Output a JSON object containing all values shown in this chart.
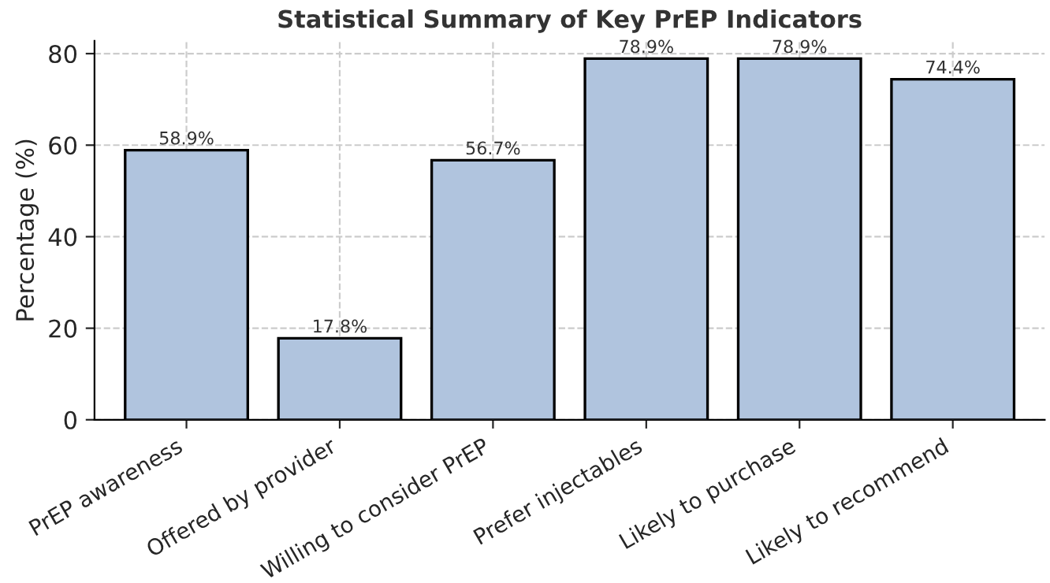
{
  "chart_data": {
    "type": "bar",
    "title": "Statistical Summary of Key PrEP Indicators",
    "ylabel": "Percentage (%)",
    "categories": [
      "PrEP awareness",
      "Offered by provider",
      "Willing to consider PrEP",
      "Prefer injectables",
      "Likely to purchase",
      "Likely to recommend"
    ],
    "values": [
      58.9,
      17.8,
      56.7,
      78.9,
      78.9,
      74.4
    ],
    "value_labels": [
      "58.9%",
      "17.8%",
      "56.7%",
      "78.9%",
      "78.9%",
      "74.4%"
    ],
    "color": "#b0c4de",
    "ylim": [
      0,
      82.8
    ],
    "yticks": [
      0,
      20,
      40,
      60,
      80
    ],
    "grid": true
  }
}
